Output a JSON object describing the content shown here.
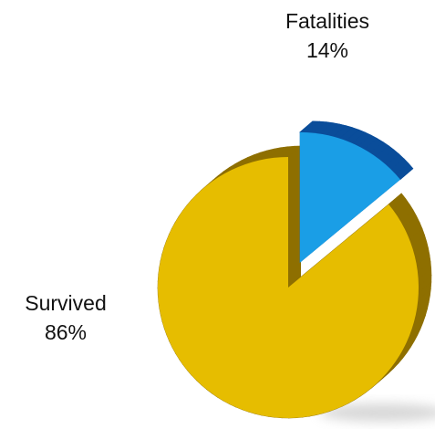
{
  "chart_data": {
    "type": "pie",
    "title": "",
    "categories": [
      "Fatalities",
      "Survived"
    ],
    "values": [
      14,
      86
    ],
    "value_labels": [
      "14%",
      "86%"
    ],
    "exploded": "Fatalities",
    "style": "3d",
    "legend": "none",
    "colors": {
      "Fatalities": "#1a9ee6",
      "Survived": "#e6bd00"
    },
    "side_colors": {
      "Fatalities": "#0a4d9a",
      "Survived": "#8e6f00"
    }
  }
}
